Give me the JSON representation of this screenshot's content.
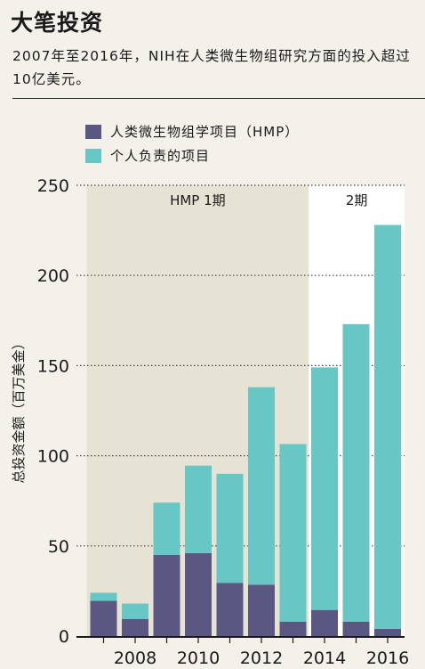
{
  "header": {
    "title": "大笔投资",
    "subtitle": "2007年至2016年，NIH在人类微生物组研究方面的投入超过10亿美元。"
  },
  "colors": {
    "hmp": "#5a5783",
    "individual": "#66c7c5",
    "phase1_band": "#e6e3d4",
    "background": "#f4f1ea"
  },
  "phases": [
    {
      "label": "HMP 1期",
      "from": 2007,
      "to": 2013
    },
    {
      "label": "2期",
      "from": 2014,
      "to": 2016
    }
  ],
  "chart_data": {
    "type": "bar",
    "stacked": true,
    "categories": [
      "2007",
      "2008",
      "2009",
      "2010",
      "2011",
      "2012",
      "2013",
      "2014",
      "2015",
      "2016"
    ],
    "series": [
      {
        "name": "人类微生物组学项目（HMP）",
        "values": [
          19.5,
          9.5,
          45,
          46,
          29.5,
          28.5,
          8,
          14.5,
          8,
          4
        ]
      },
      {
        "name": "个人负责的项目",
        "values": [
          4.5,
          8.5,
          29,
          48.5,
          60.5,
          109.5,
          98.5,
          134.5,
          165,
          224
        ]
      }
    ],
    "xlabel": "",
    "ylabel": "总投资金额（百万美金）",
    "ylim": [
      0,
      250
    ],
    "yticks": [
      0,
      50,
      100,
      150,
      200,
      250
    ],
    "xtick_labels": [
      "2008",
      "2010",
      "2012",
      "2014",
      "2016"
    ],
    "grid": "horizontal dotted",
    "legend_position": "top-left"
  }
}
